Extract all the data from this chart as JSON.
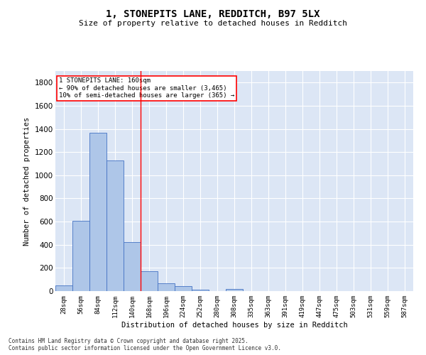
{
  "title_line1": "1, STONEPITS LANE, REDDITCH, B97 5LX",
  "title_line2": "Size of property relative to detached houses in Redditch",
  "xlabel": "Distribution of detached houses by size in Redditch",
  "ylabel": "Number of detached properties",
  "footnote_line1": "Contains HM Land Registry data © Crown copyright and database right 2025.",
  "footnote_line2": "Contains public sector information licensed under the Open Government Licence v3.0.",
  "annotation_line1": "1 STONEPITS LANE: 160sqm",
  "annotation_line2": "← 90% of detached houses are smaller (3,465)",
  "annotation_line3": "10% of semi-detached houses are larger (365) →",
  "bar_color": "#aec6e8",
  "bar_edge_color": "#4472c4",
  "vline_color": "red",
  "vline_x": 4.5,
  "background_color": "#dce6f5",
  "categories": [
    "28sqm",
    "56sqm",
    "84sqm",
    "112sqm",
    "140sqm",
    "168sqm",
    "196sqm",
    "224sqm",
    "252sqm",
    "280sqm",
    "308sqm",
    "335sqm",
    "363sqm",
    "391sqm",
    "419sqm",
    "447sqm",
    "475sqm",
    "503sqm",
    "531sqm",
    "559sqm",
    "587sqm"
  ],
  "values": [
    50,
    605,
    1365,
    1125,
    425,
    170,
    65,
    40,
    15,
    0,
    20,
    0,
    0,
    0,
    0,
    0,
    0,
    0,
    0,
    0,
    0
  ],
  "ylim": [
    0,
    1900
  ],
  "yticks": [
    0,
    200,
    400,
    600,
    800,
    1000,
    1200,
    1400,
    1600,
    1800
  ]
}
